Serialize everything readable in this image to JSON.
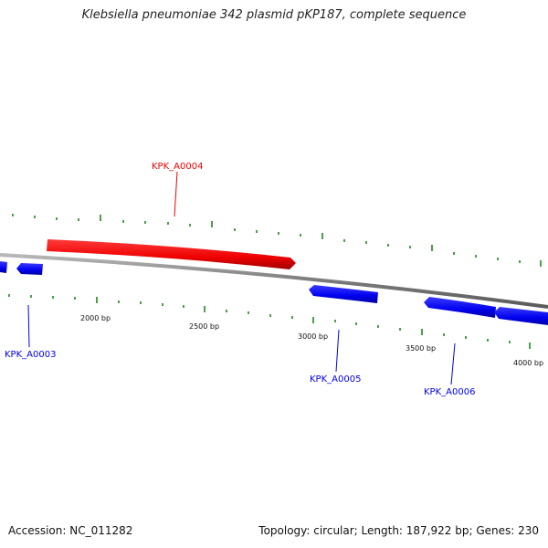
{
  "title": "Klebsiella pneumoniae 342 plasmid pKP187, complete sequence",
  "accession": "Accession: NC_011282",
  "summary": "Topology: circular; Length: 187,922 bp; Genes: 230",
  "colors": {
    "backbone": "#8c8c8c",
    "forward_gene": "#ee0000",
    "reverse_gene": "#0000ee",
    "tick": "#1a8a1a"
  },
  "ticks": [
    "2000 bp",
    "2500 bp",
    "3000 bp",
    "3500 bp",
    "4000 bp"
  ],
  "genes": [
    {
      "label": "KPK_A0003",
      "strand": "reverse",
      "color": "#0000ee"
    },
    {
      "label": "KPK_A0004",
      "strand": "forward",
      "color": "#ee0000"
    },
    {
      "label": "KPK_A0005",
      "strand": "reverse",
      "color": "#0000ee"
    },
    {
      "label": "KPK_A0006",
      "strand": "reverse",
      "color": "#0000ee"
    }
  ]
}
